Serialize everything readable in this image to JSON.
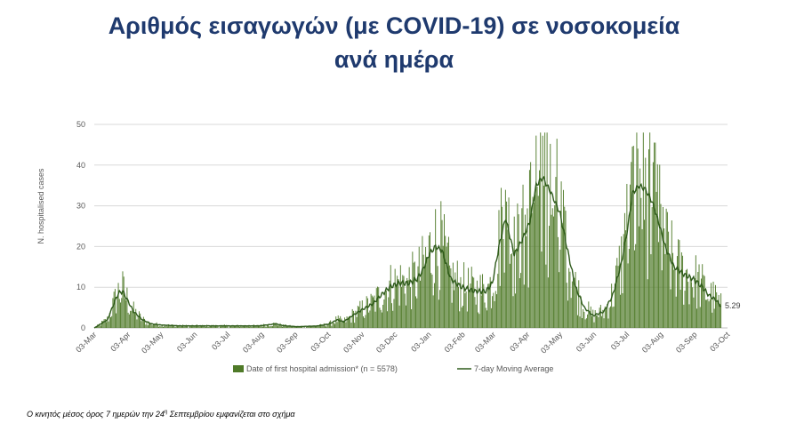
{
  "header": {
    "title_line1": "Αριθμός εισαγωγών (με COVID-19) σε νοσοκομεία",
    "title_line2": "ανά ημέρα"
  },
  "footnote": {
    "text_before": "Ο κινητός μέσος όρος 7 ημερών την 24",
    "superscript": "η",
    "text_after": " Σεπτεμβρίου εμφανίζεται στο σχήμα"
  },
  "colors": {
    "bar": "#4f7a28",
    "line": "#2e5a1b",
    "grid": "#d9d9d9",
    "title": "#1f3a6e"
  },
  "chart_data": {
    "type": "bar",
    "ylabel": "N. hospitalised cases",
    "ylim": [
      0,
      50
    ],
    "yticks": [
      0,
      10,
      20,
      30,
      40,
      50
    ],
    "grid": true,
    "legend_placement": "bottom",
    "start_date": "2020-03-03",
    "x_ticks": [
      {
        "label": "03-Mar",
        "day": 0
      },
      {
        "label": "03-Apr",
        "day": 31
      },
      {
        "label": "03-May",
        "day": 61
      },
      {
        "label": "03-Jun",
        "day": 92
      },
      {
        "label": "03-Jul",
        "day": 122
      },
      {
        "label": "03-Aug",
        "day": 153
      },
      {
        "label": "03-Sep",
        "day": 184
      },
      {
        "label": "03-Oct",
        "day": 214
      },
      {
        "label": "03-Nov",
        "day": 245
      },
      {
        "label": "03-Dec",
        "day": 275
      },
      {
        "label": "03-Jan",
        "day": 306
      },
      {
        "label": "03-Feb",
        "day": 337
      },
      {
        "label": "03-Mar",
        "day": 365
      },
      {
        "label": "03-Apr",
        "day": 396
      },
      {
        "label": "03-May",
        "day": 426
      },
      {
        "label": "03-Jun",
        "day": 457
      },
      {
        "label": "03-Jul",
        "day": 487
      },
      {
        "label": "03-Aug",
        "day": 518
      },
      {
        "label": "03-Sep",
        "day": 549
      },
      {
        "label": "03-Oct",
        "day": 579
      }
    ],
    "series": [
      {
        "name": "Date of first hospital admission* (n = 5578)",
        "kind": "bar"
      },
      {
        "name": "7-day Moving Average",
        "kind": "line"
      }
    ],
    "moving_average_profile": [
      [
        0,
        0
      ],
      [
        6,
        1
      ],
      [
        12,
        2
      ],
      [
        18,
        6
      ],
      [
        22,
        8.5
      ],
      [
        26,
        9
      ],
      [
        30,
        7
      ],
      [
        36,
        4
      ],
      [
        44,
        2
      ],
      [
        52,
        1
      ],
      [
        62,
        0.7
      ],
      [
        80,
        0.5
      ],
      [
        100,
        0.5
      ],
      [
        130,
        0.5
      ],
      [
        150,
        0.5
      ],
      [
        160,
        0.8
      ],
      [
        166,
        1
      ],
      [
        172,
        0.6
      ],
      [
        185,
        0.3
      ],
      [
        205,
        0.5
      ],
      [
        215,
        1
      ],
      [
        222,
        2
      ],
      [
        228,
        1.5
      ],
      [
        236,
        3
      ],
      [
        245,
        4.5
      ],
      [
        255,
        6
      ],
      [
        262,
        8
      ],
      [
        270,
        10
      ],
      [
        278,
        11
      ],
      [
        288,
        11
      ],
      [
        295,
        12
      ],
      [
        300,
        14
      ],
      [
        306,
        18
      ],
      [
        312,
        20
      ],
      [
        318,
        19
      ],
      [
        326,
        12
      ],
      [
        336,
        10
      ],
      [
        348,
        9
      ],
      [
        358,
        9
      ],
      [
        364,
        11
      ],
      [
        370,
        20
      ],
      [
        376,
        27
      ],
      [
        384,
        18
      ],
      [
        392,
        22
      ],
      [
        398,
        26
      ],
      [
        404,
        35
      ],
      [
        410,
        37
      ],
      [
        418,
        33
      ],
      [
        426,
        28
      ],
      [
        432,
        20
      ],
      [
        440,
        10
      ],
      [
        448,
        5
      ],
      [
        456,
        3
      ],
      [
        466,
        4
      ],
      [
        474,
        8
      ],
      [
        482,
        16
      ],
      [
        488,
        25
      ],
      [
        492,
        33
      ],
      [
        498,
        35
      ],
      [
        504,
        34
      ],
      [
        510,
        31
      ],
      [
        516,
        26
      ],
      [
        522,
        20
      ],
      [
        530,
        15
      ],
      [
        540,
        13
      ],
      [
        548,
        12
      ],
      [
        556,
        10
      ],
      [
        562,
        8
      ],
      [
        568,
        7
      ],
      [
        573,
        5.29
      ]
    ],
    "end_day": 573,
    "end_value_label": "5.29"
  }
}
